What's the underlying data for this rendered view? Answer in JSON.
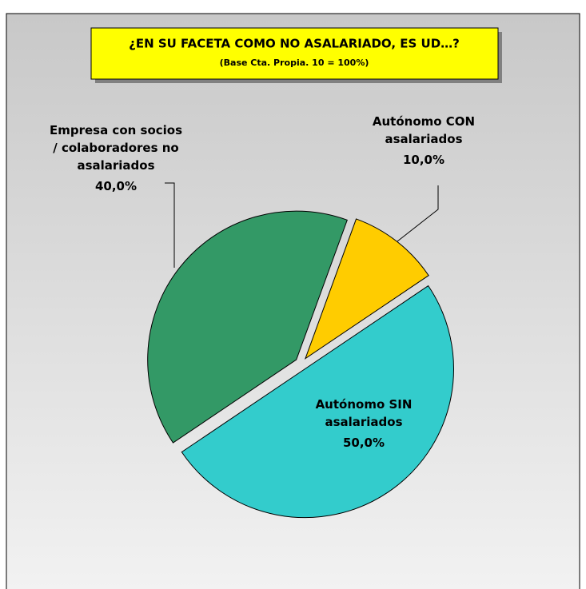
{
  "chart_data": {
    "type": "pie",
    "title": "¿EN SU FACETA COMO NO ASALARIADO, ES UD…?",
    "subtitle": "(Base Cta. Propia. 10 = 100%)",
    "categories": [
      "Autónomo CON asalariados",
      "Autónomo SIN asalariados",
      "Empresa con socios / colaboradores no asalariados"
    ],
    "values": [
      10,
      50,
      40
    ],
    "value_labels": [
      "10,0%",
      "50,0%",
      "40,0%"
    ],
    "colors": [
      "#ffcc00",
      "#33cccc",
      "#339966"
    ]
  }
}
